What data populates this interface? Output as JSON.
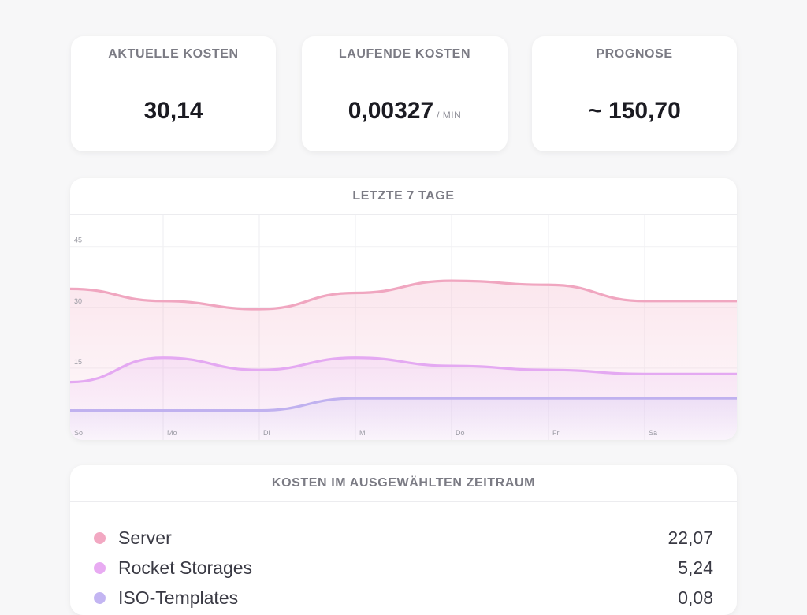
{
  "metrics": [
    {
      "label": "AKTUELLE KOSTEN",
      "value": "30,14",
      "unit": ""
    },
    {
      "label": "LAUFENDE KOSTEN",
      "value": "0,00327",
      "unit": "/ MIN"
    },
    {
      "label": "PROGNOSE",
      "value": "~ 150,70",
      "unit": ""
    }
  ],
  "chart_panel": {
    "title": "LETZTE 7 TAGE"
  },
  "chart_data": {
    "type": "area",
    "title": "LETZTE 7 TAGE",
    "categories": [
      "So",
      "Mo",
      "Di",
      "Mi",
      "Do",
      "Fr",
      "Sa"
    ],
    "y_ticks": [
      "45",
      "30",
      "15"
    ],
    "ylim": [
      0,
      45
    ],
    "grid": true,
    "series": [
      {
        "color": "#f0a6c0",
        "values": [
          33,
          30,
          28,
          32,
          35,
          34,
          30
        ]
      },
      {
        "color": "#e4a9f2",
        "values": [
          10,
          16,
          13,
          16,
          14,
          13,
          12
        ]
      },
      {
        "color": "#c0b1ef",
        "values": [
          3,
          3,
          3,
          6,
          6,
          6,
          6
        ]
      }
    ]
  },
  "cost_panel": {
    "title": "KOSTEN IM AUSGEWÄHLTEN ZEITRAUM",
    "items": [
      {
        "label": "Server",
        "value": "22,07",
        "color": "#f2a8c2"
      },
      {
        "label": "Rocket Storages",
        "value": "5,24",
        "color": "#e8abf2"
      },
      {
        "label": "ISO-Templates",
        "value": "0,08",
        "color": "#c3b5f2"
      }
    ]
  }
}
